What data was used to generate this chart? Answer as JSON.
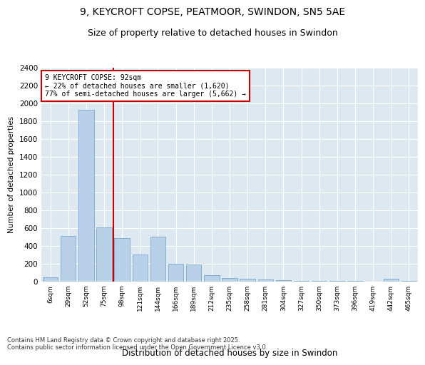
{
  "title1": "9, KEYCROFT COPSE, PEATMOOR, SWINDON, SN5 5AE",
  "title2": "Size of property relative to detached houses in Swindon",
  "xlabel": "Distribution of detached houses by size in Swindon",
  "ylabel": "Number of detached properties",
  "categories": [
    "6sqm",
    "29sqm",
    "52sqm",
    "75sqm",
    "98sqm",
    "121sqm",
    "144sqm",
    "166sqm",
    "189sqm",
    "212sqm",
    "235sqm",
    "258sqm",
    "281sqm",
    "304sqm",
    "327sqm",
    "350sqm",
    "373sqm",
    "396sqm",
    "419sqm",
    "442sqm",
    "465sqm"
  ],
  "values": [
    50,
    510,
    1930,
    610,
    490,
    300,
    500,
    200,
    195,
    75,
    40,
    35,
    25,
    15,
    10,
    10,
    5,
    5,
    0,
    30,
    5
  ],
  "bar_color": "#b8d0e8",
  "bar_edge_color": "#7aa8cc",
  "background_color": "#dde8f0",
  "vline_color": "#cc0000",
  "annotation_title": "9 KEYCROFT COPSE: 92sqm",
  "annotation_line1": "← 22% of detached houses are smaller (1,620)",
  "annotation_line2": "77% of semi-detached houses are larger (5,662) →",
  "annotation_box_color": "#cc0000",
  "ylim": [
    0,
    2400
  ],
  "yticks": [
    0,
    200,
    400,
    600,
    800,
    1000,
    1200,
    1400,
    1600,
    1800,
    2000,
    2200,
    2400
  ],
  "footnote": "Contains HM Land Registry data © Crown copyright and database right 2025.\nContains public sector information licensed under the Open Government Licence v3.0.",
  "title_fontsize": 10,
  "subtitle_fontsize": 9,
  "footnote_fontsize": 6
}
